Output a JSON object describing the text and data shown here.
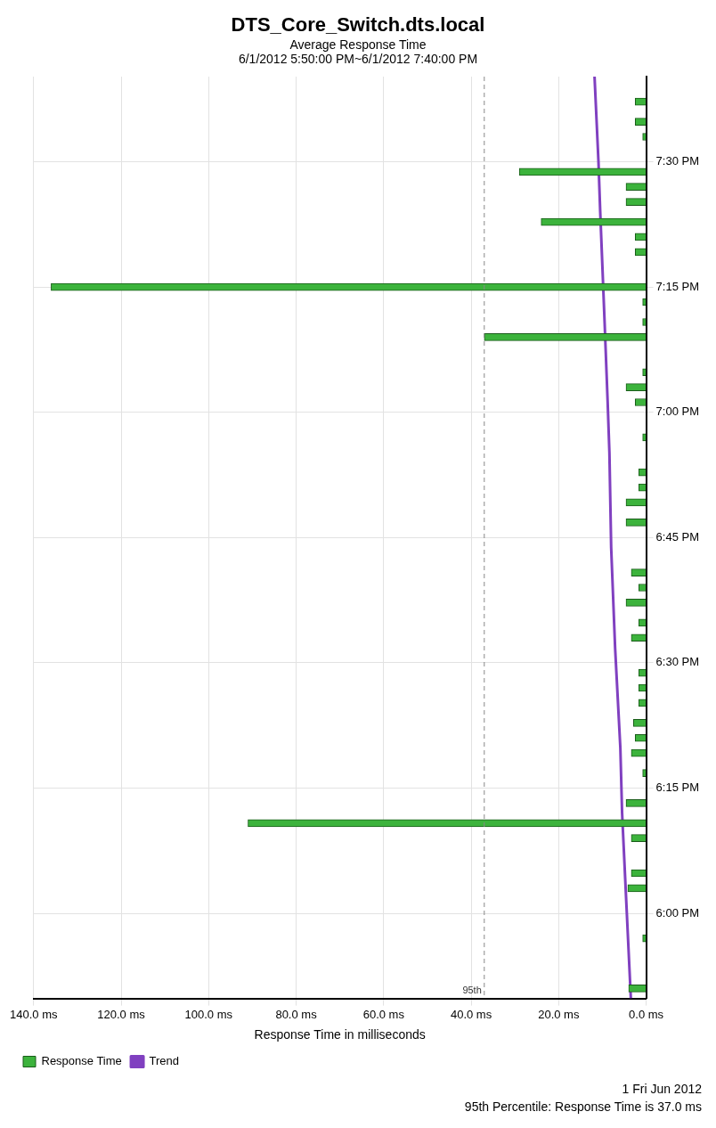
{
  "chart_data": {
    "type": "bar",
    "orientation": "horizontal",
    "title": "DTS_Core_Switch.dts.local",
    "subtitle": "Average Response Time\n6/1/2012 5:50:00 PM~6/1/2012 7:40:00 PM",
    "xlabel": "Response Time in milliseconds",
    "annotations": [
      "1 Fri Jun 2012",
      "95th Percentile: Response Time is 37.0 ms"
    ],
    "series": [
      {
        "name": "Response Time",
        "color": "#3cb33c",
        "x": [
          17.85,
          17.95,
          18.05,
          18.08,
          18.15,
          18.18,
          18.22,
          18.28,
          18.32,
          18.35,
          18.38,
          18.42,
          18.45,
          18.48,
          18.55,
          18.58,
          18.62,
          18.65,
          18.68,
          18.78,
          18.82,
          18.85,
          18.88,
          18.95,
          19.02,
          19.05,
          19.08,
          19.15,
          19.18,
          19.22,
          19.25,
          19.32,
          19.35,
          19.38,
          19.42,
          19.45,
          19.48,
          19.55,
          19.58,
          19.62
        ],
        "values": [
          4,
          0.8,
          4.2,
          3.4,
          3.4,
          91,
          4.6,
          0.8,
          3.4,
          2.5,
          2.9,
          1.7,
          1.7,
          1.7,
          3.4,
          1.7,
          4.6,
          1.7,
          3.4,
          4.6,
          4.6,
          1.7,
          1.7,
          0.8,
          2.5,
          4.6,
          0.8,
          37,
          0.8,
          0.8,
          136,
          2.5,
          2.5,
          24,
          4.6,
          4.6,
          29,
          0.8,
          2.5,
          2.5
        ]
      },
      {
        "name": "Trend",
        "type": "line",
        "color": "#8040c0",
        "x": [
          17.83,
          18.07,
          18.2,
          18.33,
          18.53,
          18.73,
          18.92,
          19.02,
          19.18,
          19.4,
          19.5,
          19.67
        ],
        "values": [
          3.5,
          4.8,
          5.5,
          5.9,
          7.1,
          8.0,
          8.4,
          8.8,
          9.5,
          10.5,
          10.9,
          11.8
        ]
      }
    ],
    "ylim": [
      17.83,
      19.67
    ],
    "yticks": [
      {
        "value": 18,
        "label": "6:00 PM"
      },
      {
        "value": 18.25,
        "label": "6:15 PM"
      },
      {
        "value": 18.5,
        "label": "6:30 PM"
      },
      {
        "value": 18.75,
        "label": "6:45 PM"
      },
      {
        "value": 19,
        "label": "7:00 PM"
      },
      {
        "value": 19.25,
        "label": "7:15 PM"
      },
      {
        "value": 19.5,
        "label": "7:30 PM"
      }
    ],
    "xlim": [
      140,
      0
    ],
    "xticks": [
      {
        "value": 140,
        "label": "140.0 ms"
      },
      {
        "value": 120,
        "label": "120.0 ms"
      },
      {
        "value": 100,
        "label": "100.0 ms"
      },
      {
        "value": 80,
        "label": "80.0 ms"
      },
      {
        "value": 60,
        "label": "60.0 ms"
      },
      {
        "value": 40,
        "label": "40.0 ms"
      },
      {
        "value": 20,
        "label": "20.0 ms"
      },
      {
        "value": 0,
        "label": "0.0 ms"
      }
    ],
    "ref_lines": [
      {
        "axis": "x",
        "value": 37,
        "label": "95th",
        "color": "#888888",
        "line_style": "dashed"
      }
    ],
    "grid": true,
    "legend": "bottom left",
    "marker": "none",
    "line_style": "solid"
  }
}
